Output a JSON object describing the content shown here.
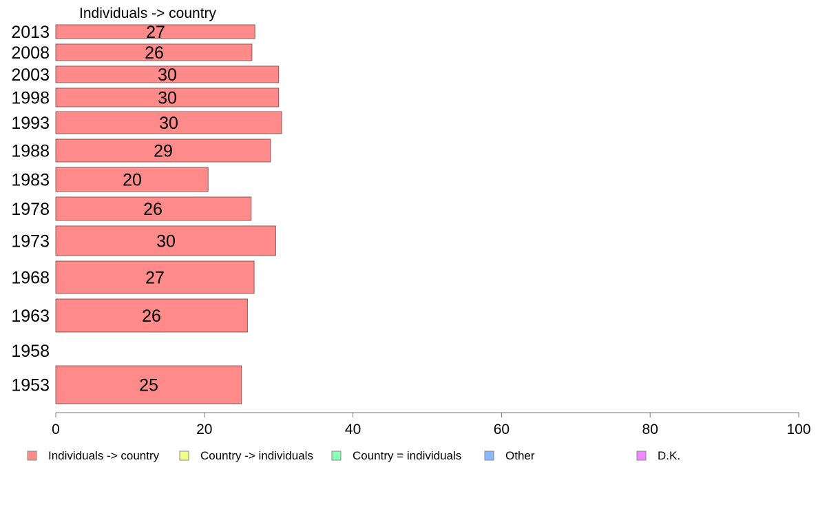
{
  "chart_data": {
    "type": "bar",
    "orientation": "horizontal",
    "title": "",
    "series_title": "Individuals -> country",
    "categories": [
      "2013",
      "2008",
      "2003",
      "1998",
      "1993",
      "1988",
      "1983",
      "1978",
      "1973",
      "1968",
      "1963",
      "1958",
      "1953"
    ],
    "series": [
      {
        "name": "Individuals -> country",
        "color": "#ff8a8a",
        "values": [
          26.8,
          26.4,
          30.0,
          30.0,
          30.4,
          28.9,
          20.5,
          26.3,
          29.6,
          26.7,
          25.8,
          null,
          25.0
        ],
        "labels": [
          "27",
          "26",
          "30",
          "30",
          "30",
          "29",
          "20",
          "26",
          "30",
          "27",
          "26",
          "",
          "25"
        ]
      }
    ],
    "xlim": [
      0,
      100
    ],
    "x_ticks": [
      "0",
      "20",
      "40",
      "60",
      "80",
      "100"
    ],
    "grid": false,
    "legend_position": "bottom",
    "legend": [
      {
        "name": "Individuals -> country",
        "color": "#ff8a8a"
      },
      {
        "name": "Country -> individuals",
        "color": "#eeff8a"
      },
      {
        "name": "Country = individuals",
        "color": "#8affb8"
      },
      {
        "name": "Other",
        "color": "#8ab8ff"
      },
      {
        "name": "D.K.",
        "color": "#ee8aff"
      }
    ]
  }
}
